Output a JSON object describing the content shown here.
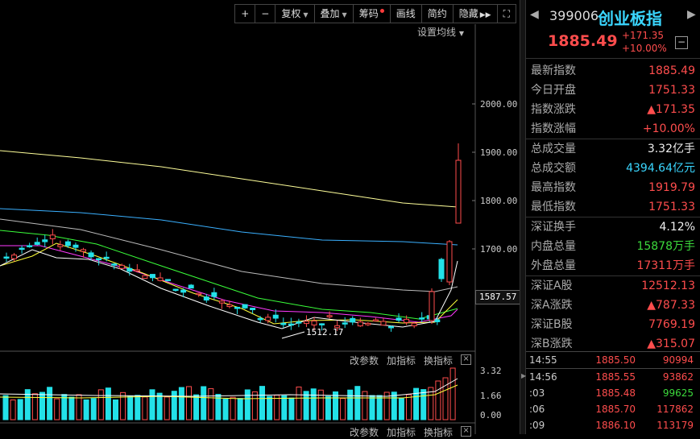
{
  "toolbar": {
    "plus": "+",
    "minus": "−",
    "fuquan": "复权",
    "diejia": "叠加",
    "chouma": "筹码",
    "huaxian": "画线",
    "jianyue": "简约",
    "yincang": "隐藏",
    "fullscreen": "⛶"
  },
  "ma_setting": "设置均线",
  "price_axis": [
    "2000.00",
    "1900.00",
    "1800.00",
    "1700.00"
  ],
  "current_price_label": "1587.57",
  "low_annotation": "1512.17",
  "volume_axis": [
    "3.32",
    "1.66",
    "0.00"
  ],
  "sub_panel": {
    "params": "改参数",
    "add": "加指标",
    "swap": "换指标",
    "close": "×"
  },
  "colors": {
    "up": "#ff4d4d",
    "down": "#23e1e8",
    "ma5": "#ffffff",
    "ma10": "#ffff3a",
    "ma20": "#ff3aff",
    "ma30": "#3aff3a",
    "ma60": "#bbbbbb",
    "ma120": "#3ab0ff",
    "ma250": "#ffff9a"
  },
  "header": {
    "code": "399006",
    "name": "创业板指",
    "price": "1885.49",
    "change": "+171.35",
    "change_pct": "+10.00%"
  },
  "stats": [
    {
      "label": "最新指数",
      "value": "1885.49",
      "cls": "red"
    },
    {
      "label": "今日开盘",
      "value": "1751.33",
      "cls": "red"
    },
    {
      "label": "指数涨跌",
      "value": "▲171.35",
      "cls": "red"
    },
    {
      "label": "指数涨幅",
      "value": "+10.00%",
      "cls": "red"
    },
    {
      "label": "总成交量",
      "value": "3.32亿手",
      "cls": "white"
    },
    {
      "label": "总成交额",
      "value": "4394.64亿元",
      "cls": "cyan"
    },
    {
      "label": "最高指数",
      "value": "1919.79",
      "cls": "red"
    },
    {
      "label": "最低指数",
      "value": "1751.33",
      "cls": "red"
    },
    {
      "label": "深证换手",
      "value": "4.12%",
      "cls": "white"
    },
    {
      "label": "内盘总量",
      "value": "15878万手",
      "cls": "green"
    },
    {
      "label": "外盘总量",
      "value": "17311万手",
      "cls": "red"
    },
    {
      "label": "深证A股",
      "value": "12512.13",
      "cls": "red"
    },
    {
      "label": "深A涨跌",
      "value": "▲787.33",
      "cls": "red"
    },
    {
      "label": "深证B股",
      "value": "7769.19",
      "cls": "red"
    },
    {
      "label": "深B涨跌",
      "value": "▲315.07",
      "cls": "red"
    }
  ],
  "ticks": [
    {
      "time": "14:55",
      "price": "1885.50",
      "vol": "90994",
      "vcls": "red"
    },
    {
      "time": "14:56",
      "price": "1885.55",
      "vol": "93862",
      "vcls": "red"
    },
    {
      "time": ":03",
      "price": "1885.48",
      "vol": "99625",
      "vcls": "green"
    },
    {
      "time": ":06",
      "price": "1885.70",
      "vol": "117862",
      "vcls": "red"
    },
    {
      "time": ":09",
      "price": "1886.10",
      "vol": "113179",
      "vcls": "red"
    }
  ]
}
